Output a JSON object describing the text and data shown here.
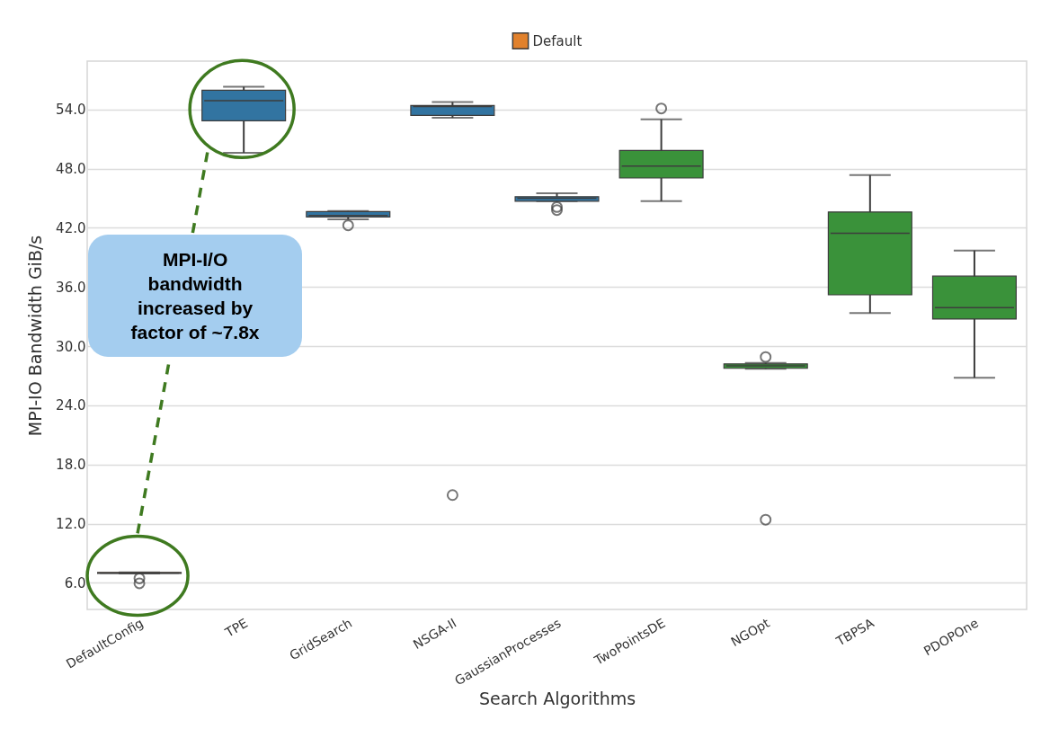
{
  "chart_data": {
    "type": "box",
    "xlabel": "Search Algorithms",
    "ylabel": "MPI-IO Bandwidth GiB/s",
    "categories": [
      "DefaultConfig",
      "TPE",
      "GridSearch",
      "NSGA-II",
      "GaussianProcesses",
      "TwoPointsDE",
      "NGOpt",
      "TBPSA",
      "PDOPOne"
    ],
    "series": [
      {
        "color": "#3274a1",
        "boxes": [
          null,
          {
            "low": 49.6,
            "q1": 52.85,
            "median": 54.9,
            "q3": 55.95,
            "high": 56.3
          },
          {
            "low": 42.85,
            "q1": 43.1,
            "median": 43.25,
            "q3": 43.65,
            "high": 43.7,
            "outliers": [
              42.25
            ]
          },
          {
            "low": 53.15,
            "q1": 53.4,
            "median": 54.3,
            "q3": 54.4,
            "high": 54.75,
            "outliers": [
              14.9
            ]
          },
          {
            "low": 44.7,
            "q1": 44.7,
            "median": 45.0,
            "q3": 45.15,
            "high": 45.5,
            "outliers": [
              44.1,
              43.8
            ]
          },
          null,
          null,
          null,
          null
        ]
      },
      {
        "name": "Default",
        "color": "#e1812c",
        "boxes": [
          {
            "low": 6.95,
            "q1": 6.95,
            "median": 7.0,
            "q3": 7.05,
            "high": 7.05,
            "outliers": [
              6.45,
              5.95
            ]
          },
          null,
          null,
          null,
          null,
          null,
          null,
          null,
          null
        ]
      },
      {
        "color": "#3a923a",
        "boxes": [
          null,
          null,
          null,
          null,
          null,
          {
            "low": 44.7,
            "q1": 47.05,
            "median": 48.25,
            "q3": 49.85,
            "high": 53.0,
            "outliers": [
              54.1
            ]
          },
          {
            "low": 27.7,
            "q1": 27.75,
            "median": 28.0,
            "q3": 28.2,
            "high": 28.3,
            "outliers": [
              28.9,
              12.4
            ]
          },
          {
            "low": 33.35,
            "q1": 35.2,
            "median": 41.45,
            "q3": 43.6,
            "high": 47.35
          },
          {
            "low": 26.8,
            "q1": 32.75,
            "median": 33.9,
            "q3": 37.1,
            "high": 39.7
          }
        ]
      }
    ],
    "ylim": [
      3.3,
      58.9
    ],
    "yticks": [
      {
        "value": 6,
        "label": "6.0"
      },
      {
        "value": 12,
        "label": "12.0"
      },
      {
        "value": 18,
        "label": "18.0"
      },
      {
        "value": 24,
        "label": "24.0"
      },
      {
        "value": 30,
        "label": "30.0"
      },
      {
        "value": 36,
        "label": "36.0"
      },
      {
        "value": 42,
        "label": "42.0"
      },
      {
        "value": 48,
        "label": "48.0"
      },
      {
        "value": 54,
        "label": "54.0"
      }
    ],
    "grid": "y",
    "legend": "top",
    "annotations": [
      "MPI-I/O bandwidth increased by factor of ~7.8x"
    ]
  }
}
